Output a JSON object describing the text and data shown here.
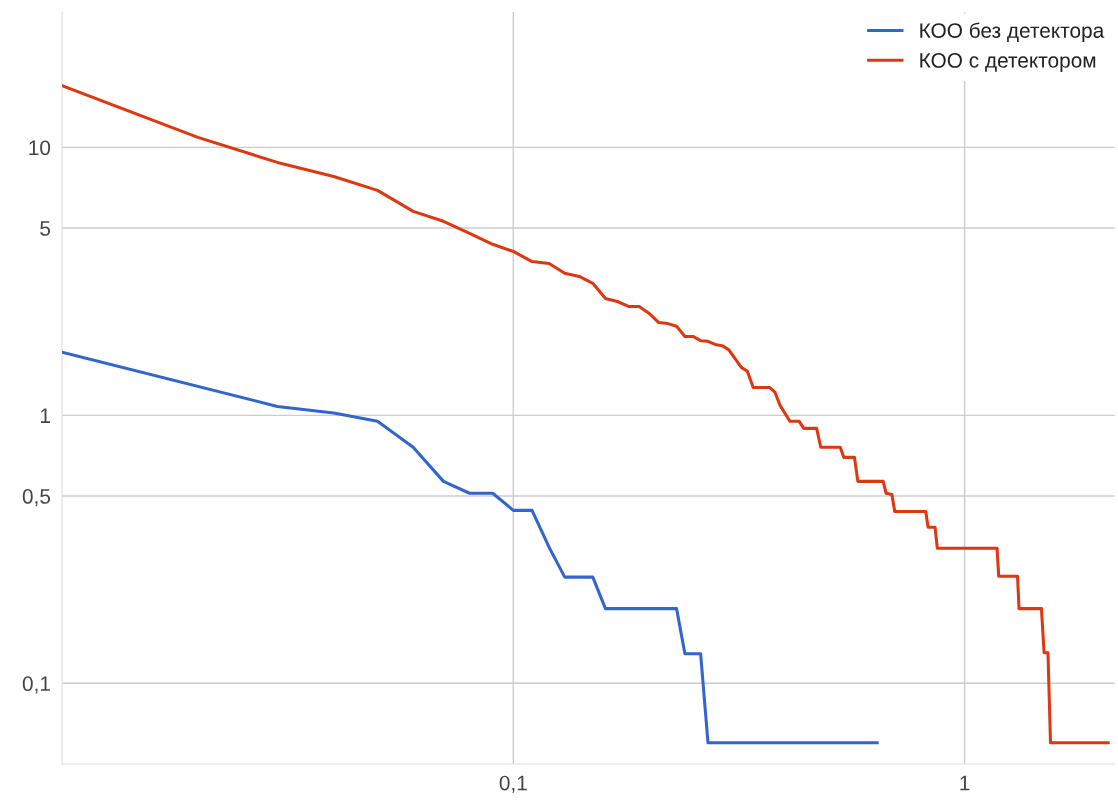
{
  "chart_data": {
    "type": "line",
    "log": "xy",
    "grid": true,
    "legend": "top right",
    "marker": "none",
    "line_style": "solid",
    "xlim": [
      0.01,
      2.15
    ],
    "ylim": [
      0.05,
      32
    ],
    "xticks": [
      {
        "value": 0.1,
        "label": "0,1"
      },
      1
    ],
    "yticks": [
      {
        "value": 0.1,
        "label": "0,1"
      },
      {
        "value": 0.5,
        "label": "0,5"
      },
      1,
      5,
      10
    ],
    "series": [
      {
        "name": "КОО без детектора",
        "color": "#3366cc",
        "x": [
          0.01,
          0.03,
          0.04,
          0.05,
          0.06,
          0.07,
          0.08,
          0.09,
          0.1,
          0.11,
          0.12,
          0.13,
          0.15,
          0.16,
          0.23,
          0.24,
          0.26,
          0.27,
          0.64
        ],
        "values": [
          1.72,
          1.08,
          1.02,
          0.95,
          0.76,
          0.567,
          0.512,
          0.512,
          0.442,
          0.442,
          0.322,
          0.249,
          0.249,
          0.19,
          0.19,
          0.129,
          0.129,
          0.06,
          0.06
        ]
      },
      {
        "name": "КОО с детектором",
        "color": "#dc3912",
        "x": [
          0.01,
          0.02,
          0.03,
          0.04,
          0.05,
          0.06,
          0.07,
          0.08,
          0.09,
          0.1,
          0.11,
          0.12,
          0.13,
          0.14,
          0.15,
          0.16,
          0.17,
          0.18,
          0.19,
          0.2,
          0.21,
          0.22,
          0.23,
          0.24,
          0.25,
          0.26,
          0.27,
          0.28,
          0.29,
          0.3,
          0.32,
          0.33,
          0.34,
          0.37,
          0.38,
          0.39,
          0.41,
          0.43,
          0.44,
          0.47,
          0.48,
          0.53,
          0.54,
          0.57,
          0.58,
          0.66,
          0.67,
          0.69,
          0.7,
          0.82,
          0.83,
          0.86,
          0.87,
          1.18,
          1.19,
          1.31,
          1.32,
          1.48,
          1.5,
          1.53,
          1.55,
          2.08
        ],
        "values": [
          17.0,
          10.9,
          8.79,
          7.79,
          6.91,
          5.77,
          5.3,
          4.78,
          4.35,
          4.09,
          3.75,
          3.69,
          3.39,
          3.3,
          3.11,
          2.73,
          2.66,
          2.55,
          2.55,
          2.4,
          2.22,
          2.2,
          2.15,
          1.97,
          1.97,
          1.9,
          1.89,
          1.84,
          1.82,
          1.76,
          1.51,
          1.46,
          1.27,
          1.27,
          1.22,
          1.09,
          0.95,
          0.95,
          0.894,
          0.894,
          0.76,
          0.76,
          0.697,
          0.697,
          0.567,
          0.567,
          0.512,
          0.507,
          0.438,
          0.438,
          0.382,
          0.382,
          0.319,
          0.319,
          0.251,
          0.251,
          0.19,
          0.19,
          0.13,
          0.13,
          0.06,
          0.06
        ]
      }
    ]
  }
}
